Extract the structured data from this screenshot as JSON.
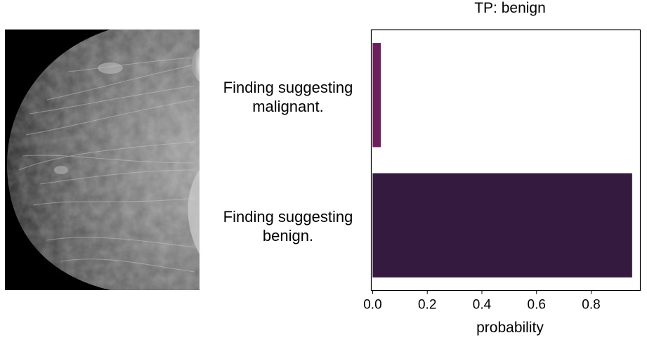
{
  "chart_data": {
    "type": "bar",
    "orientation": "horizontal",
    "title": "TP: benign",
    "xlabel": "probability",
    "ylabel": "",
    "categories": [
      [
        "Finding suggesting",
        "malignant."
      ],
      [
        "Finding suggesting",
        "benign."
      ]
    ],
    "values": [
      0.03,
      0.95
    ],
    "colors": [
      "#6d1f5b",
      "#351a40"
    ],
    "xlim": [
      -0.005,
      0.98
    ],
    "xticks": [
      0.0,
      0.2,
      0.4,
      0.6,
      0.8
    ],
    "xtick_labels": [
      "0.0",
      "0.2",
      "0.4",
      "0.6",
      "0.8"
    ]
  },
  "image": {
    "subject": "mammogram",
    "background": "#000000"
  }
}
